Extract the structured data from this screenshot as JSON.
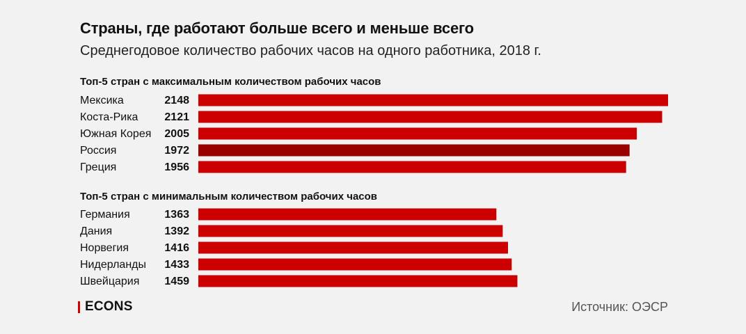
{
  "header": {
    "title": "Страны, где работают больше всего и меньше всего",
    "subtitle": "Среднегодовое количество рабочих часов на одного работника, 2018 г."
  },
  "colors": {
    "bar": "#cc0000",
    "highlight": "#990000",
    "background": "#f2f2f2"
  },
  "chart_data": [
    {
      "type": "bar",
      "orientation": "horizontal",
      "title": "Топ-5 стран с максимальным количеством рабочих часов",
      "categories": [
        "Мексика",
        "Коста-Рика",
        "Южная Корея",
        "Россия",
        "Греция"
      ],
      "values": [
        2148,
        2121,
        2005,
        1972,
        1956
      ],
      "highlight": "Россия",
      "xlim": [
        0,
        2148
      ],
      "grid": false,
      "legend": "none"
    },
    {
      "type": "bar",
      "orientation": "horizontal",
      "title": "Топ-5 стран с минимальным количеством рабочих часов",
      "categories": [
        "Германия",
        "Дания",
        "Норвегия",
        "Нидерланды",
        "Швейцария"
      ],
      "values": [
        1363,
        1392,
        1416,
        1433,
        1459
      ],
      "xlim": [
        0,
        2148
      ],
      "grid": false,
      "legend": "none"
    }
  ],
  "footer": {
    "logo": "ECONS",
    "source": "Источник: ОЭСР"
  }
}
